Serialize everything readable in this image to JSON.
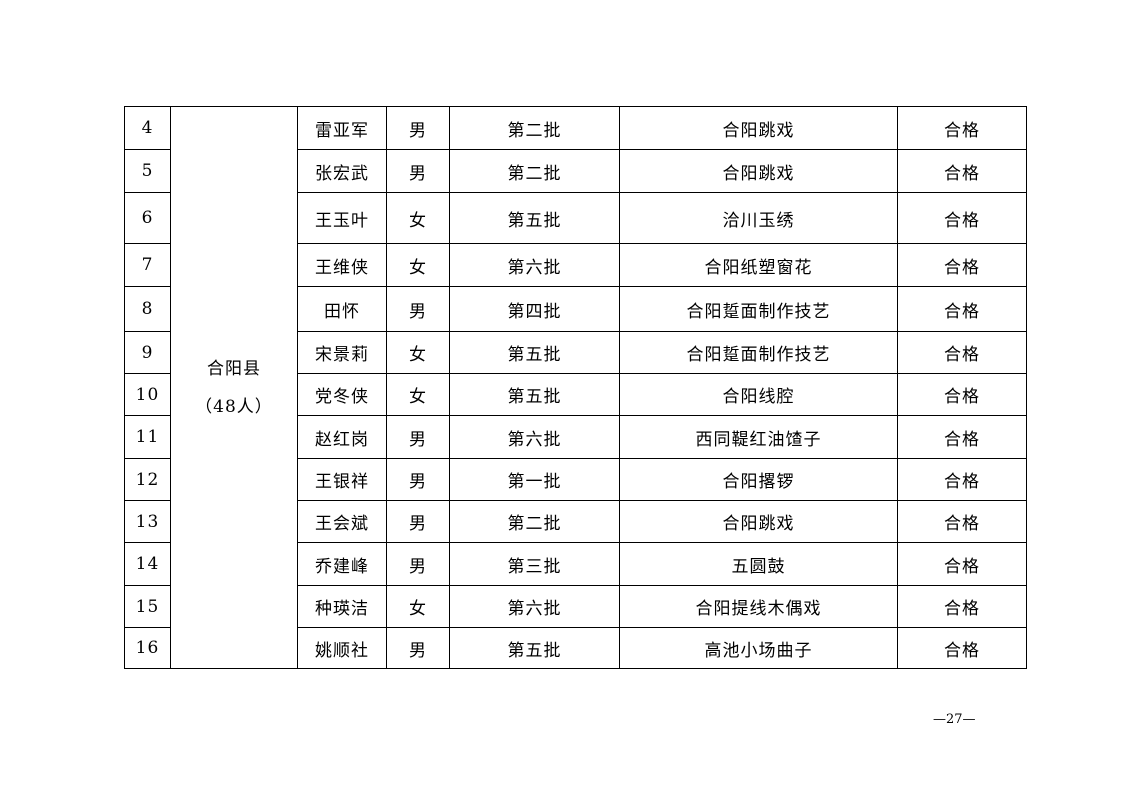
{
  "region": {
    "name": "合阳县",
    "count": "（48人）"
  },
  "rows": [
    {
      "no": "4",
      "name": "雷亚军",
      "gender": "男",
      "batch": "第二批",
      "project": "合阳跳戏",
      "result": "合格"
    },
    {
      "no": "5",
      "name": "张宏武",
      "gender": "男",
      "batch": "第二批",
      "project": "合阳跳戏",
      "result": "合格"
    },
    {
      "no": "6",
      "name": "王玉叶",
      "gender": "女",
      "batch": "第五批",
      "project": "洽川玉绣",
      "result": "合格"
    },
    {
      "no": "7",
      "name": "王维侠",
      "gender": "女",
      "batch": "第六批",
      "project": "合阳纸塑窗花",
      "result": "合格"
    },
    {
      "no": "8",
      "name": "田怀",
      "gender": "男",
      "batch": "第四批",
      "project": "合阳踅面制作技艺",
      "result": "合格"
    },
    {
      "no": "9",
      "name": "宋景莉",
      "gender": "女",
      "batch": "第五批",
      "project": "合阳踅面制作技艺",
      "result": "合格"
    },
    {
      "no": "10",
      "name": "党冬侠",
      "gender": "女",
      "batch": "第五批",
      "project": "合阳线腔",
      "result": "合格"
    },
    {
      "no": "11",
      "name": "赵红岗",
      "gender": "男",
      "batch": "第六批",
      "project": "西同鞮红油馇子",
      "result": "合格"
    },
    {
      "no": "12",
      "name": "王银祥",
      "gender": "男",
      "batch": "第一批",
      "project": "合阳撂锣",
      "result": "合格"
    },
    {
      "no": "13",
      "name": "王会斌",
      "gender": "男",
      "batch": "第二批",
      "project": "合阳跳戏",
      "result": "合格"
    },
    {
      "no": "14",
      "name": "乔建峰",
      "gender": "男",
      "batch": "第三批",
      "project": "五圆鼓",
      "result": "合格"
    },
    {
      "no": "15",
      "name": "种瑛洁",
      "gender": "女",
      "batch": "第六批",
      "project": "合阳提线木偶戏",
      "result": "合格"
    },
    {
      "no": "16",
      "name": "姚顺社",
      "gender": "男",
      "batch": "第五批",
      "project": "高池小场曲子",
      "result": "合格"
    }
  ],
  "footer": {
    "page": "—27—"
  }
}
